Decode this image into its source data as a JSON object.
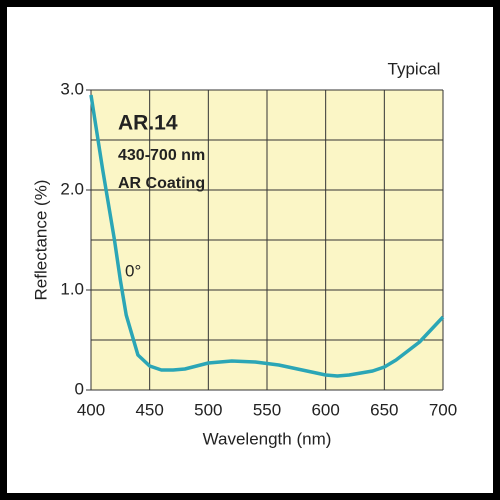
{
  "chart_data": {
    "type": "line",
    "title": "AR.14",
    "subtitle": "430-700 nm",
    "description": "AR Coating",
    "note": "Typical",
    "annotation": "0°",
    "x_label": "Wavelength (nm)",
    "y_label": "Reflectance (%)",
    "xlim": [
      400,
      700
    ],
    "ylim": [
      0,
      3
    ],
    "xticks": [
      400,
      450,
      500,
      550,
      600,
      650,
      700
    ],
    "yticks": [
      0,
      {
        "value": 1,
        "label": "1.0"
      },
      {
        "value": 2,
        "label": "2.0"
      },
      {
        "value": 3,
        "label": "3.0"
      }
    ],
    "ygrid": [
      0.5,
      1,
      1.5,
      2,
      2.5,
      3
    ],
    "grid": true,
    "background": "#fbf6c6",
    "x": [
      400,
      410,
      420,
      425,
      430,
      440,
      450,
      460,
      470,
      480,
      490,
      500,
      520,
      540,
      560,
      580,
      600,
      610,
      620,
      640,
      650,
      660,
      680,
      700
    ],
    "series": [
      {
        "name": "0°",
        "color": "#2ba6b6",
        "values": [
          2.95,
          2.2,
          1.5,
          1.1,
          0.75,
          0.35,
          0.24,
          0.2,
          0.2,
          0.21,
          0.24,
          0.27,
          0.29,
          0.28,
          0.25,
          0.2,
          0.15,
          0.14,
          0.15,
          0.19,
          0.23,
          0.3,
          0.48,
          0.73
        ]
      }
    ]
  }
}
